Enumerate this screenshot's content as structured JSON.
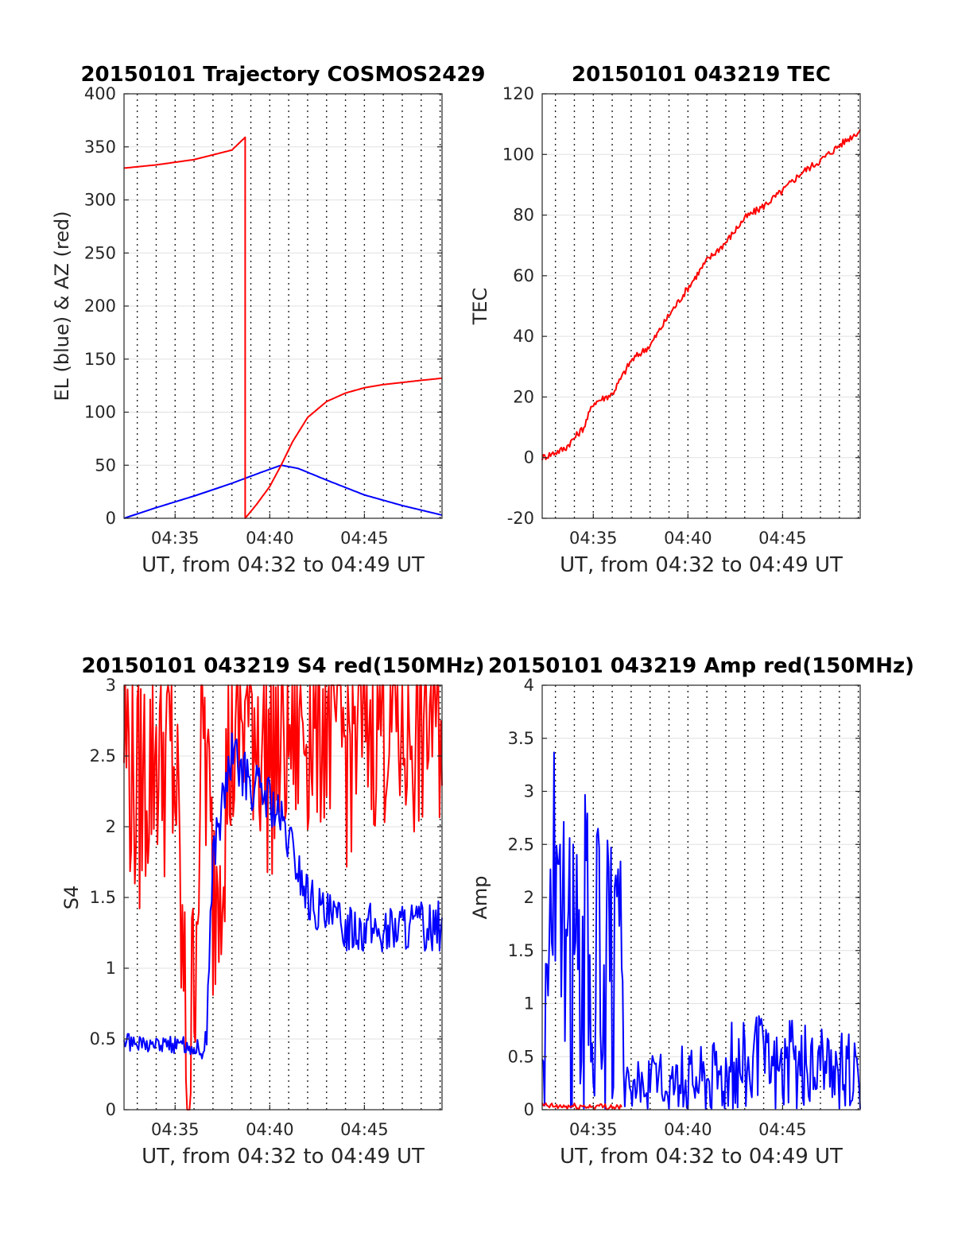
{
  "chart_data": [
    {
      "type": "line",
      "title": "20150101 Trajectory COSMOS2429",
      "xlabel": "UT, from 04:32 to 04:49 UT",
      "ylabel": "EL (blue) & AZ (red)",
      "xlim": [
        272.3,
        289.1
      ],
      "ylim": [
        0,
        400
      ],
      "xticks": [
        275,
        280,
        285
      ],
      "xtick_labels": [
        "04:35",
        "04:40",
        "04:45"
      ],
      "yticks": [
        0,
        50,
        100,
        150,
        200,
        250,
        300,
        350,
        400
      ],
      "ytick_labels": [
        "0",
        "50",
        "100",
        "150",
        "200",
        "250",
        "300",
        "350",
        "400"
      ],
      "grid": true,
      "series": [
        {
          "color": "#0000ff",
          "x": [
            272.3,
            274.0,
            276.0,
            278.0,
            279.5,
            280.6,
            281.5,
            283.0,
            285.0,
            287.0,
            289.1
          ],
          "y": [
            0,
            10,
            21,
            33,
            43,
            50,
            47,
            36,
            22,
            12,
            3
          ]
        },
        {
          "color": "#ff0000",
          "x": [
            272.3,
            274.0,
            276.0,
            278.0,
            278.7,
            278.7,
            279.3,
            280.0,
            280.6,
            281.2,
            282.0,
            283.0,
            284.0,
            285.0,
            286.0,
            287.0,
            288.0,
            289.1
          ],
          "y": [
            330,
            333,
            338,
            347,
            359,
            0,
            13,
            30,
            50,
            72,
            95,
            110,
            118,
            123,
            126,
            128,
            130,
            132
          ]
        }
      ]
    },
    {
      "type": "line",
      "title": "20150101 043219 TEC",
      "xlabel": "UT, from 04:32 to 04:49 UT",
      "ylabel": "TEC",
      "xlim": [
        272.3,
        289.1
      ],
      "ylim": [
        -20,
        120
      ],
      "xticks": [
        275,
        280,
        285
      ],
      "xtick_labels": [
        "04:35",
        "04:40",
        "04:45"
      ],
      "yticks": [
        -20,
        0,
        20,
        40,
        60,
        80,
        100,
        120
      ],
      "ytick_labels": [
        "-20",
        "0",
        "20",
        "40",
        "60",
        "80",
        "100",
        "120"
      ],
      "grid": true,
      "series": [
        {
          "color": "#ff0000",
          "x": [
            272.3,
            273.5,
            274.5,
            275.0,
            276.0,
            277.0,
            278.0,
            279.0,
            280.0,
            281.0,
            282.0,
            283.0,
            284.0,
            285.0,
            286.0,
            287.0,
            288.0,
            289.1
          ],
          "y": [
            0,
            3,
            10,
            18,
            21,
            32,
            37,
            47,
            56,
            65,
            71,
            79,
            83,
            88,
            94,
            98,
            103,
            108
          ]
        }
      ]
    },
    {
      "type": "line",
      "title": "20150101 043219 S4 red(150MHz)",
      "xlabel": "UT, from 04:32 to 04:49 UT",
      "ylabel": "S4",
      "xlim": [
        272.3,
        289.1
      ],
      "ylim": [
        0,
        3
      ],
      "xticks": [
        275,
        280,
        285
      ],
      "xtick_labels": [
        "04:35",
        "04:40",
        "04:45"
      ],
      "yticks": [
        0,
        0.5,
        1,
        1.5,
        2,
        2.5,
        3
      ],
      "ytick_labels": [
        "0",
        "0.5",
        "1",
        "1.5",
        "2",
        "2.5",
        "3"
      ],
      "grid": true,
      "series": [
        {
          "color": "#ff0000",
          "x": [
            272.3,
            273.0,
            274.0,
            275.0,
            275.7,
            276.5,
            277.0,
            278.0,
            279.0,
            280.0,
            281.0,
            282.0,
            283.0,
            284.0,
            285.0,
            286.0,
            287.0,
            288.0,
            289.1
          ],
          "y": [
            2.7,
            2.2,
            2.6,
            2.4,
            0.0,
            2.8,
            1.5,
            2.6,
            2.9,
            2.5,
            2.7,
            2.8,
            2.9,
            2.6,
            2.8,
            2.9,
            2.7,
            2.8,
            2.9
          ]
        },
        {
          "color": "#0000ff",
          "x": [
            272.3,
            273.0,
            274.0,
            275.0,
            276.0,
            276.6,
            277.0,
            278.0,
            279.0,
            280.0,
            281.0,
            282.0,
            283.0,
            284.0,
            285.0,
            286.0,
            287.0,
            288.0,
            289.1
          ],
          "y": [
            0.48,
            0.47,
            0.47,
            0.46,
            0.45,
            0.4,
            1.8,
            2.5,
            2.3,
            2.2,
            1.9,
            1.5,
            1.35,
            1.3,
            1.3,
            1.25,
            1.3,
            1.3,
            1.3
          ]
        }
      ]
    },
    {
      "type": "line",
      "title": "20150101 043219 Amp red(150MHz)",
      "xlabel": "UT, from 04:32 to 04:49 UT",
      "ylabel": "Amp",
      "xlim": [
        272.3,
        289.1
      ],
      "ylim": [
        0,
        4
      ],
      "xticks": [
        275,
        280,
        285
      ],
      "xtick_labels": [
        "04:35",
        "04:40",
        "04:45"
      ],
      "yticks": [
        0,
        0.5,
        1,
        1.5,
        2,
        2.5,
        3,
        3.5,
        4
      ],
      "ytick_labels": [
        "0",
        "0.5",
        "1",
        "1.5",
        "2",
        "2.5",
        "3",
        "3.5",
        "4"
      ],
      "grid": true,
      "series": [
        {
          "color": "#0000ff",
          "x": [
            272.3,
            272.8,
            273.5,
            274.5,
            275.5,
            276.5,
            276.6,
            277.5,
            278.5,
            279.5,
            280.5,
            281.5,
            282.5,
            283.5,
            284.5,
            285.5,
            286.5,
            287.5,
            288.5,
            289.1
          ],
          "y": [
            0.6,
            3.5,
            2.2,
            2.6,
            2.3,
            2.0,
            0.35,
            0.4,
            0.45,
            0.5,
            0.55,
            0.6,
            0.75,
            0.8,
            0.7,
            0.75,
            0.7,
            0.6,
            0.6,
            0.45
          ]
        },
        {
          "color": "#ff0000",
          "x": [
            272.3,
            273.0,
            274.0,
            275.0,
            276.0,
            276.5
          ],
          "y": [
            0.04,
            0.03,
            0.03,
            0.03,
            0.03,
            0.02
          ]
        }
      ]
    }
  ]
}
